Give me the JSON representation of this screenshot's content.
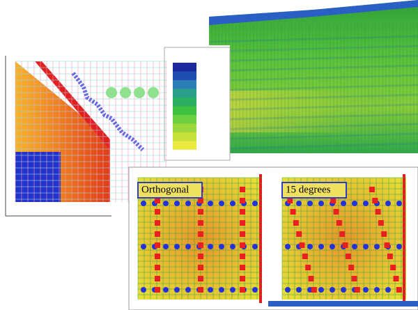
{
  "panels": {
    "orthogonal": {
      "label": "Orthogonal"
    },
    "rotated": {
      "label": "15 degrees"
    }
  }
}
